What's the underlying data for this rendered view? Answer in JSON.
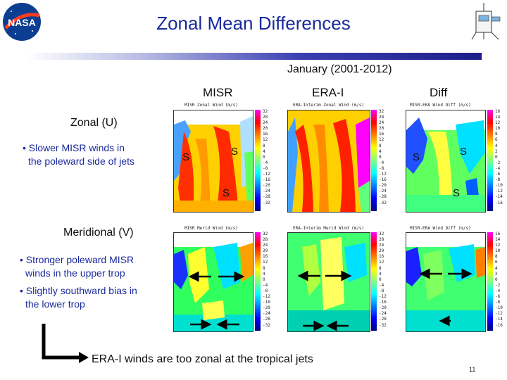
{
  "header": {
    "title": "Zonal Mean Differences",
    "subtitle": "January (2001-2012)"
  },
  "columns": [
    "MISR",
    "ERA-I",
    "Diff"
  ],
  "rows": {
    "zonal": {
      "label": "Zonal (U)",
      "bullets": [
        "• Slower MISR winds in",
        "the poleward side of jets"
      ]
    },
    "meridional": {
      "label": "Meridional (V)",
      "bullets": [
        "• Stronger poleward MISR",
        "winds in the upper trop",
        "• Slightly southward bias in",
        "the lower trop"
      ]
    }
  },
  "plot_titles": {
    "zonal": [
      "MISR Zonal Wind (m/s)",
      "ERA-Interim Zonal Wind (m/s)",
      "MISR-ERA Wind Diff (m/s)"
    ],
    "meridional": [
      "MISR Merid Wind (m/s)",
      "ERA-Interim Merid Wind (m/s)",
      "MISR-ERA Wind Diff (m/s)"
    ]
  },
  "colorbars": {
    "wind": [
      "32",
      "28",
      "24",
      "20",
      "16",
      "12",
      "8",
      "4",
      "0",
      "-4",
      "-8",
      "-12",
      "-16",
      "-20",
      "-24",
      "-28",
      "-32"
    ],
    "diff": [
      "16",
      "14",
      "12",
      "10",
      "8",
      "6",
      "4",
      "2",
      "0",
      "-2",
      "-4",
      "-6",
      "-8",
      "-10",
      "-12",
      "-14",
      "-16"
    ]
  },
  "markers": {
    "s": "S"
  },
  "footer_note": "ERA-I winds are too zonal at the tropical jets",
  "page_number": "11",
  "colors": {
    "title": "#1a2a9c",
    "bullet": "#1a2a9c",
    "accent_bar": "#1e1e8a"
  },
  "icons": [
    "nasa-logo",
    "misr-logo",
    "arrow-left-icon",
    "arrow-right-icon",
    "bent-arrow-icon"
  ]
}
